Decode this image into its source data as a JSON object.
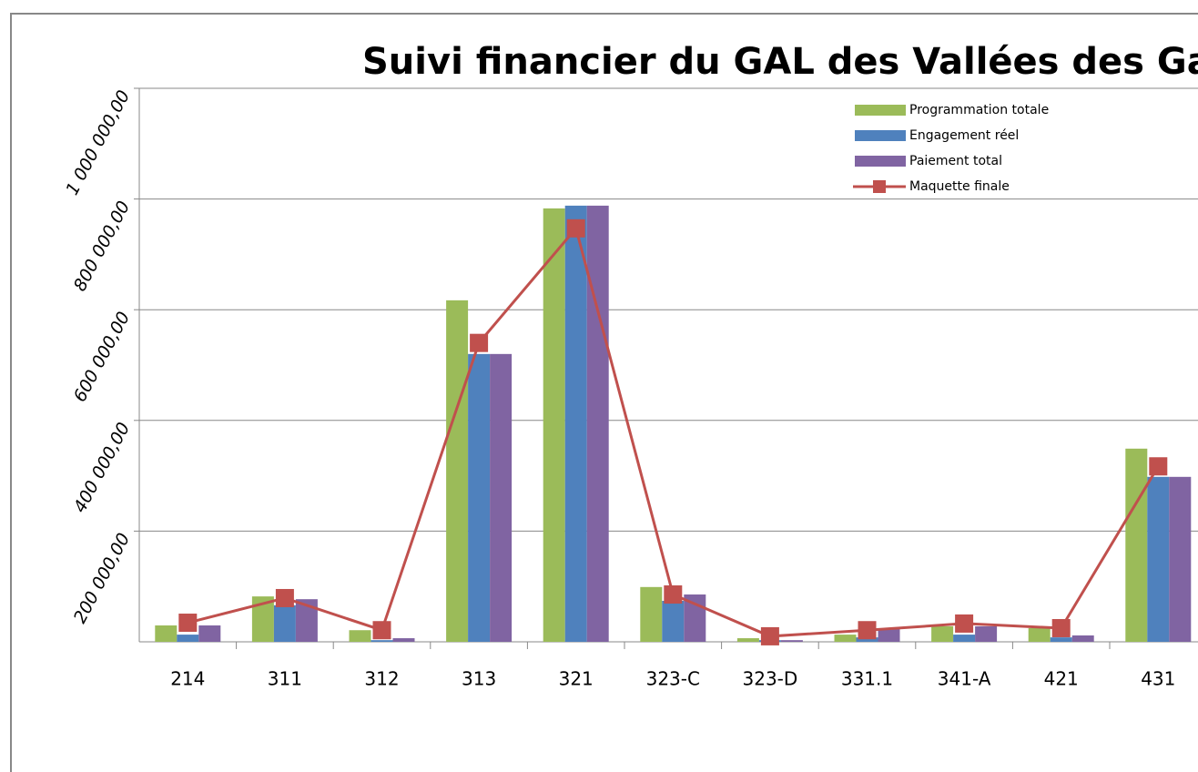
{
  "chart_data": {
    "type": "bar_line",
    "title": "Suivi financier du GAL des Vallées des Gaves",
    "categories": [
      "214",
      "311",
      "312",
      "313",
      "321",
      "323-C",
      "323-D",
      "331.1",
      "341-A",
      "421",
      "431"
    ],
    "series": [
      {
        "name": "Programmation totale",
        "type": "bar",
        "color": "#9bbb59",
        "values": [
          29600,
          82000,
          21000,
          617000,
          783000,
          99000,
          6500,
          13000,
          28000,
          24700,
          349000
        ]
      },
      {
        "name": "Engagement réel",
        "type": "bar",
        "color": "#4f81bd",
        "values": [
          13000,
          66000,
          3000,
          520000,
          788000,
          74000,
          3000,
          8000,
          13000,
          8000,
          298000
        ]
      },
      {
        "name": "Paiement total",
        "type": "bar",
        "color": "#8064a2",
        "values": [
          29600,
          77000,
          6500,
          520000,
          788000,
          85500,
          3000,
          24700,
          28000,
          11500,
          298000
        ]
      },
      {
        "name": "Maquette finale",
        "type": "line",
        "color": "#c0504d",
        "values": [
          34500,
          79000,
          21000,
          540000,
          747000,
          85500,
          10000,
          21000,
          33000,
          24700,
          317000
        ]
      }
    ],
    "ylim": [
      0,
      1000000
    ],
    "yticks": [
      {
        "value": 200000,
        "label": "200 000,00"
      },
      {
        "value": 400000,
        "label": "400 000,00"
      },
      {
        "value": 600000,
        "label": "600 000,00"
      },
      {
        "value": 800000,
        "label": "800 000,00"
      },
      {
        "value": 1000000,
        "label": "1 000 000,00"
      }
    ],
    "grid": true
  }
}
